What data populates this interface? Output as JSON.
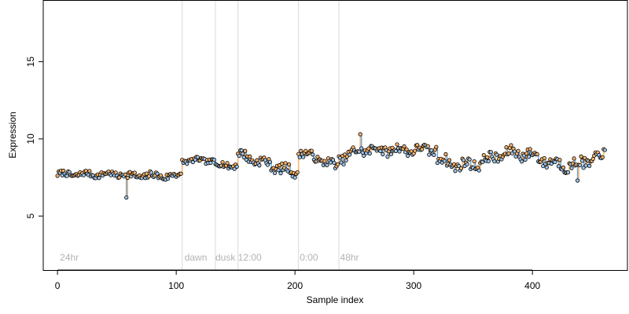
{
  "chart_data": {
    "type": "scatter",
    "xlabel": "Sample index",
    "ylabel": "Expression",
    "xlim": [
      -12,
      480
    ],
    "ylim": [
      1.5,
      19
    ],
    "xticks": [
      0,
      100,
      200,
      300,
      400
    ],
    "yticks": [
      5,
      10,
      15
    ],
    "grid": false,
    "legend": "none",
    "colors": {
      "point_fill_up": "#f6b26b",
      "point_fill_down": "#9fc5e8",
      "point_stroke": "#000000",
      "segment_up": "#f6b26b",
      "segment_down": "#6fa8dc",
      "vline": "#d9d9d9",
      "annotation": "#b3b3b3"
    },
    "vlines": [
      105,
      133,
      152,
      203,
      237
    ],
    "annotations": [
      {
        "x": 2,
        "y": 2.0,
        "text": "24hr"
      },
      {
        "x": 107,
        "y": 2.0,
        "text": "dawn"
      },
      {
        "x": 133,
        "y": 2.0,
        "text": "dusk"
      },
      {
        "x": 152,
        "y": 2.0,
        "text": "12:00"
      },
      {
        "x": 204,
        "y": 2.0,
        "text": "0:00"
      },
      {
        "x": 238,
        "y": 2.0,
        "text": "48hr"
      }
    ],
    "segments": [
      {
        "from": 0,
        "to": 58,
        "level": 7.7,
        "amp": 0.18
      },
      {
        "from": 58,
        "to": 105,
        "level": 7.6,
        "amp": 0.22
      },
      {
        "from": 105,
        "to": 133,
        "level": 8.6,
        "amp": 0.15
      },
      {
        "from": 133,
        "to": 152,
        "level": 8.3,
        "amp": 0.2
      },
      {
        "from": 152,
        "to": 203,
        "level": 8.4,
        "amp": 0.3
      },
      {
        "from": 203,
        "to": 237,
        "level": 8.8,
        "amp": 0.25
      },
      {
        "from": 237,
        "to": 320,
        "level": 9.2,
        "amp": 0.3
      },
      {
        "from": 320,
        "to": 462,
        "level": 8.4,
        "amp": 0.35
      }
    ],
    "outliers": [
      {
        "x": 58,
        "y": 6.2
      },
      {
        "x": 255,
        "y": 10.3
      },
      {
        "x": 438,
        "y": 7.3
      }
    ],
    "n_points": 462
  }
}
